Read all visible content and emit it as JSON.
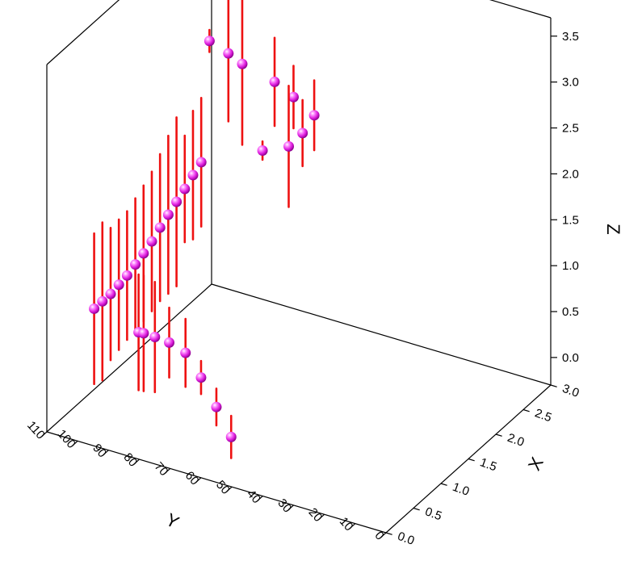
{
  "chart_data": {
    "type": "scatter",
    "subtype": "3d-scatter-with-z-error-bars",
    "title": "",
    "xlabel": "X",
    "ylabel": "Y",
    "zlabel": "Z",
    "xlim": [
      0,
      3
    ],
    "ylim": [
      0,
      110
    ],
    "zlim": [
      -0.3,
      3.7
    ],
    "x_ticks": [
      "0.0",
      "0.5",
      "1.0",
      "1.5",
      "2.0",
      "2.5",
      "3.0"
    ],
    "y_ticks": [
      "0",
      "10",
      "20",
      "30",
      "40",
      "50",
      "60",
      "70",
      "80",
      "90",
      "100",
      "110"
    ],
    "z_ticks": [
      "0.0",
      "0.5",
      "1.0",
      "1.5",
      "2.0",
      "2.5",
      "3.0",
      "3.5"
    ],
    "grid": false,
    "legend": "none",
    "colors": {
      "marker": "#e020e0",
      "error_bar": "#ee1111",
      "frame": "#000000"
    },
    "points": [
      {
        "x": 0.1,
        "y": 52,
        "z": 0.17,
        "z_err": 0.23
      },
      {
        "x": 0.28,
        "y": 60,
        "z": 0.32,
        "z_err": 0.2
      },
      {
        "x": 0.45,
        "y": 68,
        "z": 0.47,
        "z_err": 0.18
      },
      {
        "x": 0.56,
        "y": 75,
        "z": 0.61,
        "z_err": 0.37
      },
      {
        "x": 0.6,
        "y": 81,
        "z": 0.64,
        "z_err": 0.38
      },
      {
        "x": 0.62,
        "y": 86,
        "z": 0.64,
        "z_err": 0.6
      },
      {
        "x": 0.64,
        "y": 90,
        "z": 0.63,
        "z_err": 0.63
      },
      {
        "x": 0.66,
        "y": 92,
        "z": 0.61,
        "z_err": 0.63
      },
      {
        "x": 0.3,
        "y": 100,
        "z": 0.98,
        "z_err": 0.82
      },
      {
        "x": 0.45,
        "y": 100,
        "z": 0.98,
        "z_err": 0.86
      },
      {
        "x": 0.6,
        "y": 100,
        "z": 0.98,
        "z_err": 0.72
      },
      {
        "x": 0.75,
        "y": 100,
        "z": 1.0,
        "z_err": 0.71
      },
      {
        "x": 0.9,
        "y": 100,
        "z": 1.02,
        "z_err": 0.7
      },
      {
        "x": 1.05,
        "y": 100,
        "z": 1.06,
        "z_err": 0.72
      },
      {
        "x": 1.2,
        "y": 100,
        "z": 1.1,
        "z_err": 0.74
      },
      {
        "x": 1.35,
        "y": 100,
        "z": 1.15,
        "z_err": 0.76
      },
      {
        "x": 1.5,
        "y": 100,
        "z": 1.22,
        "z_err": 0.8
      },
      {
        "x": 1.65,
        "y": 100,
        "z": 1.28,
        "z_err": 0.86
      },
      {
        "x": 1.8,
        "y": 100,
        "z": 1.34,
        "z_err": 0.92
      },
      {
        "x": 1.95,
        "y": 100,
        "z": 1.4,
        "z_err": 0.58
      },
      {
        "x": 2.1,
        "y": 100,
        "z": 1.47,
        "z_err": 0.7
      },
      {
        "x": 2.25,
        "y": 100,
        "z": 1.53,
        "z_err": 0.7
      },
      {
        "x": 2.4,
        "y": 100,
        "z": 2.77,
        "z_err": 0.12
      },
      {
        "x": 2.52,
        "y": 96,
        "z": 2.61,
        "z_err": 0.74
      },
      {
        "x": 2.58,
        "y": 86,
        "z": 1.62,
        "z_err": 0.1
      },
      {
        "x": 2.66,
        "y": 94,
        "z": 2.44,
        "z_err": 0.88
      },
      {
        "x": 2.72,
        "y": 80,
        "z": 1.65,
        "z_err": 0.66
      },
      {
        "x": 2.8,
        "y": 86,
        "z": 2.25,
        "z_err": 0.48
      },
      {
        "x": 2.86,
        "y": 78,
        "z": 1.74,
        "z_err": 0.36
      },
      {
        "x": 2.92,
        "y": 82,
        "z": 2.06,
        "z_err": 0.34
      },
      {
        "x": 2.96,
        "y": 76,
        "z": 1.9,
        "z_err": 0.38
      }
    ]
  }
}
